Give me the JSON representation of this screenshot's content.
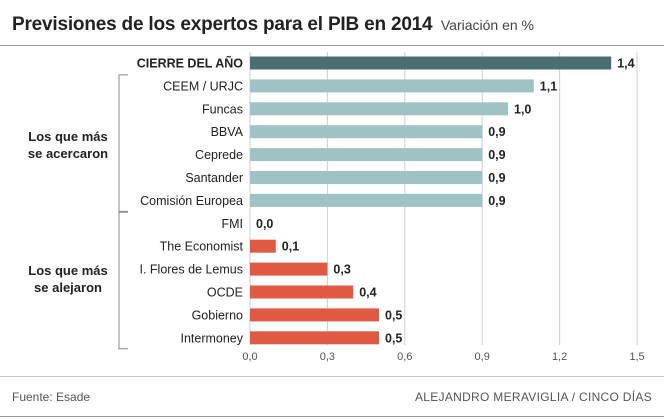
{
  "header": {
    "title": "Previsiones de los expertos para el PIB en 2014",
    "subtitle": "Variación en %"
  },
  "groups": {
    "closer": "Los que más\nse acercaron",
    "further": "Los que más\nse alejaron"
  },
  "footer": {
    "source": "Fuente: Esade",
    "credit": "ALEJANDRO MERAVIGLIA / CINCO DÍAS"
  },
  "colors": {
    "highlight": "#4a6f73",
    "closer": "#9fc3c4",
    "further": "#e05a43",
    "grid": "#cfcfcf"
  },
  "chart_data": {
    "type": "bar",
    "orientation": "horizontal",
    "title": "Previsiones de los expertos para el PIB en 2014",
    "subtitle": "Variación en %",
    "xlim": [
      0,
      1.5
    ],
    "xticks": [
      0,
      0.3,
      0.6,
      0.9,
      1.2,
      1.5
    ],
    "xtick_labels": [
      "0,0",
      "0,3",
      "0,6",
      "0,9",
      "1,2",
      "1,5"
    ],
    "grid": true,
    "categories": [
      "CIERRE DEL AÑO",
      "CEEM / URJC",
      "Funcas",
      "BBVA",
      "Ceprede",
      "Santander",
      "Comisión Europea",
      "FMI",
      "The Economist",
      "I. Flores de Lemus",
      "OCDE",
      "Gobierno",
      "Intermoney"
    ],
    "values": [
      1.4,
      1.1,
      1.0,
      0.9,
      0.9,
      0.9,
      0.9,
      0.0,
      0.1,
      0.3,
      0.4,
      0.5,
      0.5
    ],
    "value_labels": [
      "1,4",
      "1,1",
      "1,0",
      "0,9",
      "0,9",
      "0,9",
      "0,9",
      "0,0",
      "0,1",
      "0,3",
      "0,4",
      "0,5",
      "0,5"
    ],
    "groups": [
      "highlight",
      "closer",
      "closer",
      "closer",
      "closer",
      "closer",
      "closer",
      "further",
      "further",
      "further",
      "further",
      "further",
      "further"
    ]
  }
}
